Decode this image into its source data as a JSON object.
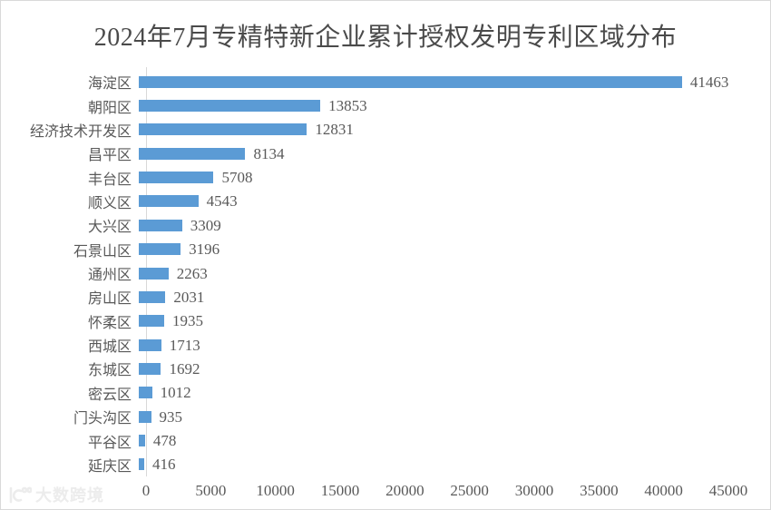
{
  "chart": {
    "title": "2024年7月专精特新企业累计授权发明专利区域分布"
  },
  "watermark": {
    "text": "大数跨境",
    "logo": "dashu-kuajing-logo"
  },
  "chart_data": {
    "type": "bar",
    "orientation": "horizontal",
    "title": "2024年7月专精特新企业累计授权发明专利区域分布",
    "categories": [
      "海淀区",
      "朝阳区",
      "经济技术开发区",
      "昌平区",
      "丰台区",
      "顺义区",
      "大兴区",
      "石景山区",
      "通州区",
      "房山区",
      "怀柔区",
      "西城区",
      "东城区",
      "密云区",
      "门头沟区",
      "平谷区",
      "延庆区"
    ],
    "values": [
      41463,
      13853,
      12831,
      8134,
      5708,
      4543,
      3309,
      3196,
      2263,
      2031,
      1935,
      1713,
      1692,
      1012,
      935,
      478,
      416
    ],
    "xlabel": "",
    "ylabel": "",
    "xlim": [
      0,
      45000
    ],
    "x_ticks": [
      0,
      5000,
      10000,
      15000,
      20000,
      25000,
      30000,
      35000,
      40000,
      45000
    ],
    "grid": false,
    "legend": false,
    "data_labels": true,
    "bar_color": "#5B9BD5",
    "axis_color": "#D9D9D9",
    "text_color": "#595959",
    "title_color": "#4A4A4A"
  }
}
